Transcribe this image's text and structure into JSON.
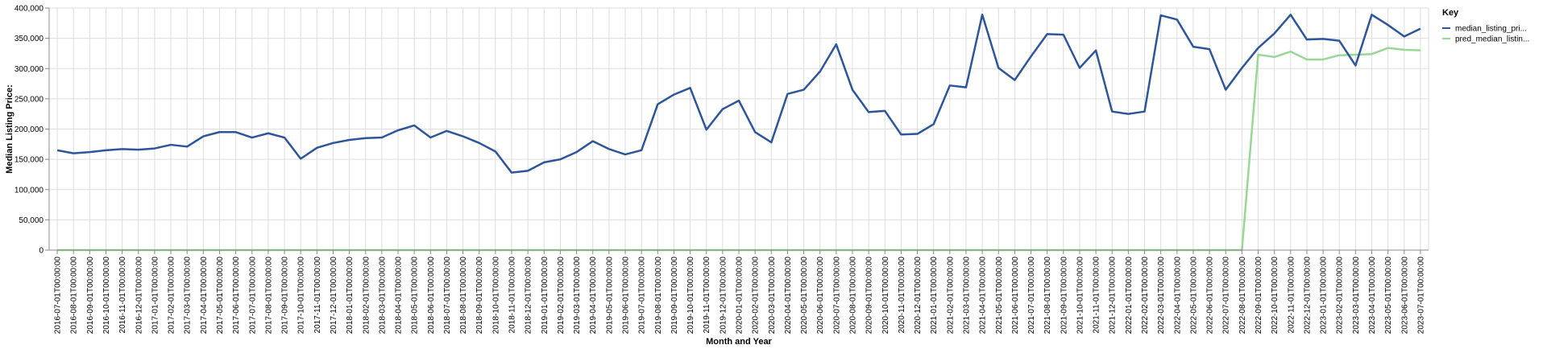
{
  "chart_data": {
    "type": "line",
    "xlabel": "Month and Year",
    "ylabel": "Median Listing Price:",
    "ylim": [
      0,
      400000
    ],
    "yticks": [
      0,
      50000,
      100000,
      150000,
      200000,
      250000,
      300000,
      350000,
      400000
    ],
    "grid": true,
    "legend": {
      "title": "Key",
      "placement": "top-right"
    },
    "x": [
      "2016-07-01T00:00:00",
      "2016-08-01T00:00:00",
      "2016-09-01T00:00:00",
      "2016-10-01T00:00:00",
      "2016-11-01T00:00:00",
      "2016-12-01T00:00:00",
      "2017-01-01T00:00:00",
      "2017-02-01T00:00:00",
      "2017-03-01T00:00:00",
      "2017-04-01T00:00:00",
      "2017-05-01T00:00:00",
      "2017-06-01T00:00:00",
      "2017-07-01T00:00:00",
      "2017-08-01T00:00:00",
      "2017-09-01T00:00:00",
      "2017-10-01T00:00:00",
      "2017-11-01T00:00:00",
      "2017-12-01T00:00:00",
      "2018-01-01T00:00:00",
      "2018-02-01T00:00:00",
      "2018-03-01T00:00:00",
      "2018-04-01T00:00:00",
      "2018-05-01T00:00:00",
      "2018-06-01T00:00:00",
      "2018-07-01T00:00:00",
      "2018-08-01T00:00:00",
      "2018-09-01T00:00:00",
      "2018-10-01T00:00:00",
      "2018-11-01T00:00:00",
      "2018-12-01T00:00:00",
      "2019-01-01T00:00:00",
      "2019-02-01T00:00:00",
      "2019-03-01T00:00:00",
      "2019-04-01T00:00:00",
      "2019-05-01T00:00:00",
      "2019-06-01T00:00:00",
      "2019-07-01T00:00:00",
      "2019-08-01T00:00:00",
      "2019-09-01T00:00:00",
      "2019-10-01T00:00:00",
      "2019-11-01T00:00:00",
      "2019-12-01T00:00:00",
      "2020-01-01T00:00:00",
      "2020-02-01T00:00:00",
      "2020-03-01T00:00:00",
      "2020-04-01T00:00:00",
      "2020-05-01T00:00:00",
      "2020-06-01T00:00:00",
      "2020-07-01T00:00:00",
      "2020-08-01T00:00:00",
      "2020-09-01T00:00:00",
      "2020-10-01T00:00:00",
      "2020-11-01T00:00:00",
      "2020-12-01T00:00:00",
      "2021-01-01T00:00:00",
      "2021-02-01T00:00:00",
      "2021-03-01T00:00:00",
      "2021-04-01T00:00:00",
      "2021-05-01T00:00:00",
      "2021-06-01T00:00:00",
      "2021-07-01T00:00:00",
      "2021-08-01T00:00:00",
      "2021-09-01T00:00:00",
      "2021-10-01T00:00:00",
      "2021-11-01T00:00:00",
      "2021-12-01T00:00:00",
      "2022-01-01T00:00:00",
      "2022-02-01T00:00:00",
      "2022-03-01T00:00:00",
      "2022-04-01T00:00:00",
      "2022-05-01T00:00:00",
      "2022-06-01T00:00:00",
      "2022-07-01T00:00:00",
      "2022-08-01T00:00:00",
      "2022-09-01T00:00:00",
      "2022-10-01T00:00:00",
      "2022-11-01T00:00:00",
      "2022-12-01T00:00:00",
      "2023-01-01T00:00:00",
      "2023-02-01T00:00:00",
      "2023-03-01T00:00:00",
      "2023-04-01T00:00:00",
      "2023-05-01T00:00:00",
      "2023-06-01T00:00:00",
      "2023-07-01T00:00:00"
    ],
    "series": [
      {
        "name": "median_listing_pri...",
        "color": "#2c559c",
        "values": [
          165000,
          160000,
          162000,
          165000,
          167000,
          166000,
          168000,
          174000,
          171000,
          188000,
          195000,
          195000,
          186000,
          193000,
          186000,
          151000,
          169000,
          177000,
          182000,
          185000,
          186000,
          198000,
          206000,
          186000,
          197000,
          188000,
          177000,
          163000,
          128000,
          131000,
          145000,
          150000,
          162000,
          180000,
          167000,
          158000,
          165000,
          241000,
          257000,
          268000,
          199000,
          233000,
          247000,
          195000,
          178000,
          258000,
          265000,
          295000,
          340000,
          265000,
          228000,
          230000,
          191000,
          192000,
          208000,
          272000,
          269000,
          389000,
          301000,
          281000,
          320000,
          357000,
          356000,
          301000,
          330000,
          229000,
          225000,
          229000,
          388000,
          381000,
          336000,
          332000,
          265000,
          301000,
          334000,
          358000,
          389000,
          348000,
          349000,
          346000,
          305000,
          389000,
          372000,
          353000,
          366000
        ]
      },
      {
        "name": "pred_median_listin...",
        "color": "#98d795",
        "values": [
          0,
          0,
          0,
          0,
          0,
          0,
          0,
          0,
          0,
          0,
          0,
          0,
          0,
          0,
          0,
          0,
          0,
          0,
          0,
          0,
          0,
          0,
          0,
          0,
          0,
          0,
          0,
          0,
          0,
          0,
          0,
          0,
          0,
          0,
          0,
          0,
          0,
          0,
          0,
          0,
          0,
          0,
          0,
          0,
          0,
          0,
          0,
          0,
          0,
          0,
          0,
          0,
          0,
          0,
          0,
          0,
          0,
          0,
          0,
          0,
          0,
          0,
          0,
          0,
          0,
          0,
          0,
          0,
          0,
          0,
          0,
          0,
          0,
          0,
          323000,
          319000,
          328000,
          315000,
          315000,
          322000,
          323000,
          324000,
          334000,
          331000,
          330000
        ]
      }
    ]
  }
}
